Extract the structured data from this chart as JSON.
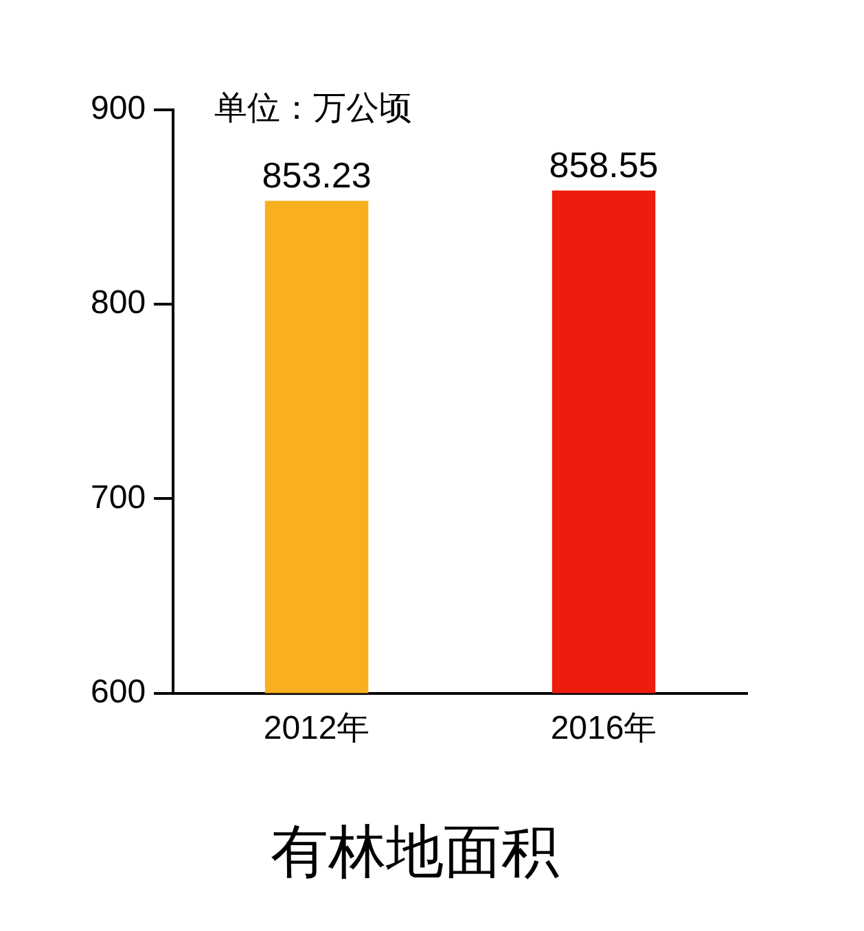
{
  "chart_data": {
    "type": "bar",
    "title": "有林地面积",
    "categories": [
      "2012年",
      "2016年"
    ],
    "values": [
      853.23,
      858.55
    ],
    "colors": [
      "#f9b020",
      "#ee1c0c"
    ],
    "ylim": [
      600,
      900
    ],
    "yticks": [
      600,
      700,
      800,
      900
    ],
    "data_labels": true,
    "annotations": [
      "单位：万公顷"
    ]
  }
}
